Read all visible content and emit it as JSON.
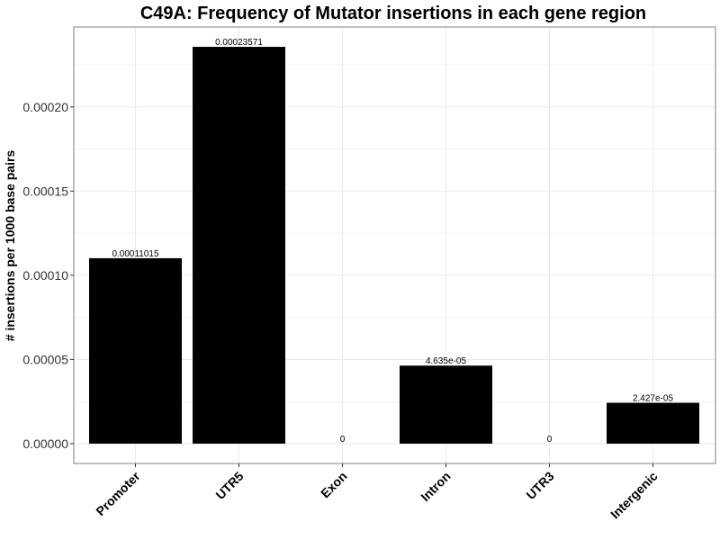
{
  "chart_data": {
    "type": "bar",
    "title": "C49A: Frequency of Mutator insertions in each gene region",
    "xlabel": "",
    "ylabel": "# insertions per 1000 base pairs",
    "categories": [
      "Promoter",
      "UTR5",
      "Exon",
      "Intron",
      "UTR3",
      "Intergenic"
    ],
    "values": [
      0.00011015,
      0.00023571,
      0,
      4.635e-05,
      0,
      2.427e-05
    ],
    "value_labels": [
      "0.00011015",
      "0.00023571",
      "0",
      "4.635e-05",
      "0",
      "2.427e-05"
    ],
    "yticks": [
      0,
      5e-05,
      0.0001,
      0.00015,
      0.0002
    ],
    "ytick_labels": [
      "0.00000",
      "0.00005",
      "0.00010",
      "0.00015",
      "0.00020"
    ],
    "ylim": [
      -1.18e-05,
      0.0002475
    ],
    "grid": true,
    "bar_color": "#000000",
    "grid_color": "#ebebeb",
    "panel_border_color": "#7f7f7f"
  }
}
